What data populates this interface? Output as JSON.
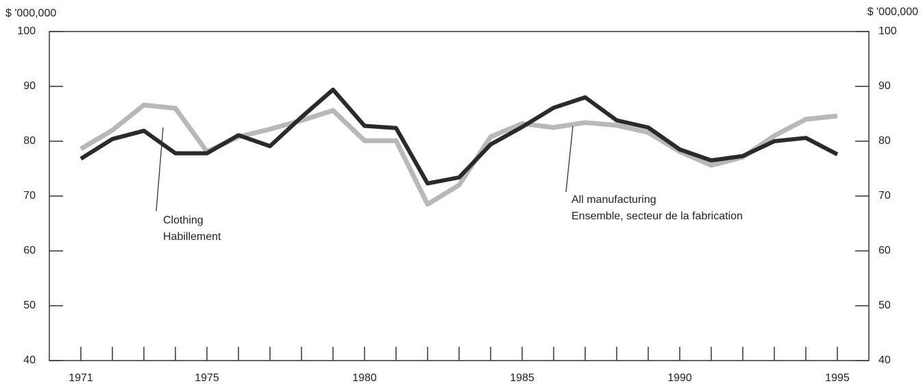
{
  "chart_data": {
    "type": "line",
    "ylabel": "$ '000,000",
    "y2label": "$ '000,000",
    "x": [
      1971,
      1972,
      1973,
      1974,
      1975,
      1976,
      1977,
      1978,
      1979,
      1980,
      1981,
      1982,
      1983,
      1984,
      1985,
      1986,
      1987,
      1988,
      1989,
      1990,
      1991,
      1992,
      1993,
      1994,
      1995
    ],
    "series": [
      {
        "name": "All manufacturing",
        "color": "#b8b8b8",
        "values": [
          78.6,
          82,
          86.6,
          86,
          78.1,
          80.8,
          82.2,
          83.8,
          85.6,
          80.1,
          80.1,
          68.5,
          72,
          80.8,
          83.2,
          82.5,
          83.4,
          82.9,
          81.6,
          78.1,
          75.6,
          77.1,
          81,
          84,
          84.6
        ]
      },
      {
        "name": "Clothing",
        "color": "#2a2a2a",
        "values": [
          76.8,
          80.4,
          81.9,
          77.8,
          77.8,
          81.1,
          79.1,
          84.4,
          89.4,
          82.8,
          82.4,
          72.3,
          73.4,
          79.4,
          82.6,
          86.1,
          88,
          83.8,
          82.5,
          78.5,
          76.5,
          77.3,
          80,
          80.6,
          77.6
        ]
      }
    ],
    "annotations": [
      {
        "lines": [
          "Clothing",
          "Habillement"
        ]
      },
      {
        "lines": [
          "All manufacturing",
          "Ensemble, secteur de la fabrication"
        ]
      }
    ],
    "xlim": [
      1970,
      1996
    ],
    "xticks": [
      1971,
      1975,
      1980,
      1985,
      1990,
      1995
    ],
    "ylim": [
      40,
      100
    ],
    "yticks": [
      40,
      50,
      60,
      70,
      80,
      90,
      100
    ],
    "y2lim": [
      40,
      100
    ],
    "y2ticks": [
      40,
      50,
      60,
      70,
      80,
      90,
      100
    ]
  }
}
